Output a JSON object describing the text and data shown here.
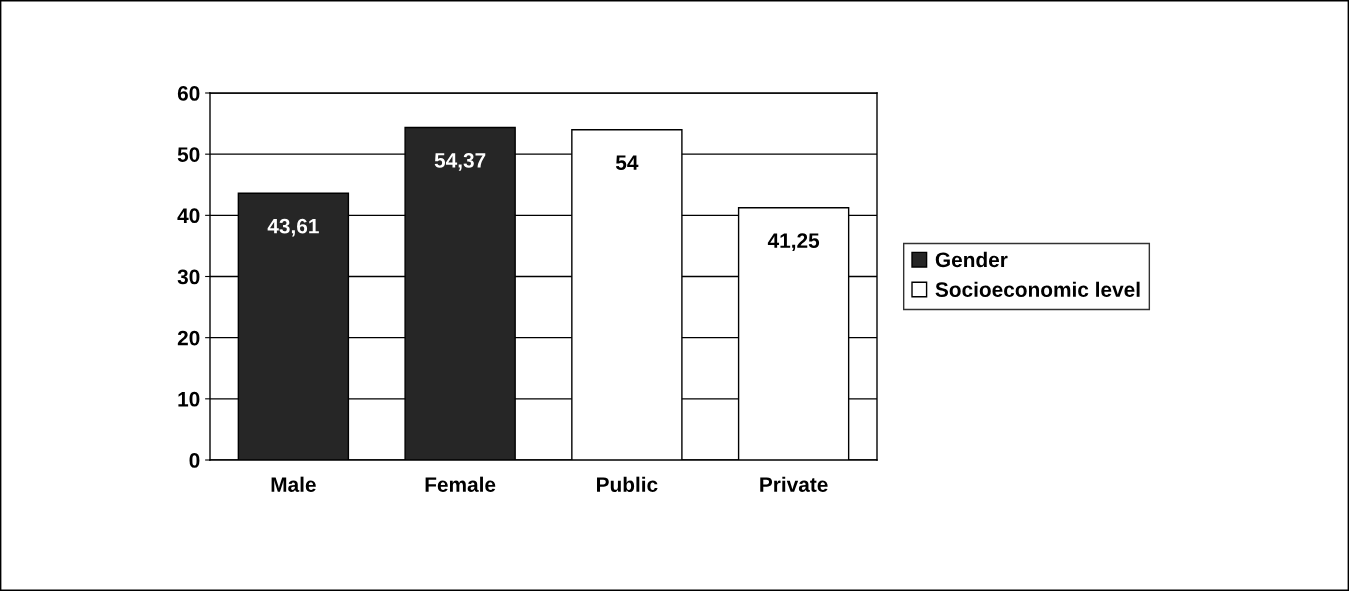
{
  "chart_data": {
    "type": "bar",
    "categories": [
      "Male",
      "Female",
      "Public",
      "Private"
    ],
    "series": [
      {
        "name": "Gender",
        "color": "#262626",
        "values": [
          43.61,
          54.37,
          null,
          null
        ],
        "value_labels": [
          "43,61",
          "54,37",
          null,
          null
        ]
      },
      {
        "name": "Socioeconomic level",
        "color": "#ffffff",
        "values": [
          null,
          null,
          54,
          41.25
        ],
        "value_labels": [
          null,
          null,
          "54",
          "41,25"
        ]
      }
    ],
    "ylim": [
      0,
      60
    ],
    "yticks": [
      0,
      10,
      20,
      30,
      40,
      50,
      60
    ],
    "grid": "y",
    "legend": "right"
  }
}
